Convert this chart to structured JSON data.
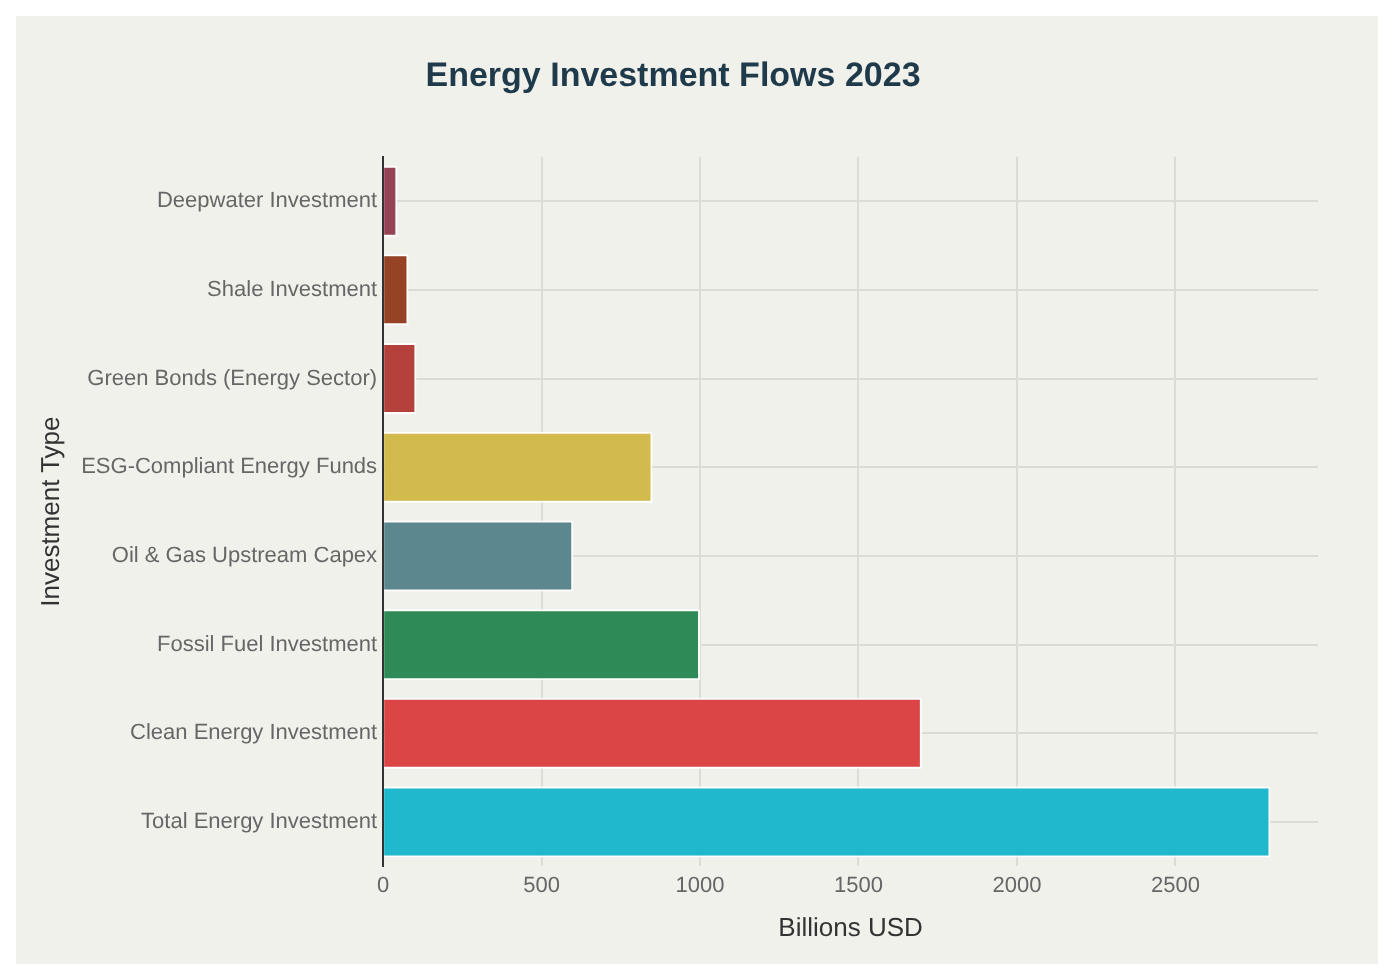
{
  "chart_data": {
    "type": "bar",
    "orientation": "horizontal",
    "title": "Energy Investment Flows 2023",
    "xlabel": "Billions USD",
    "ylabel": "Investment Type",
    "categories": [
      "Deepwater Investment",
      "Shale Investment",
      "Green Bonds (Energy Sector)",
      "ESG-Compliant Energy Funds",
      "Oil & Gas Upstream Capex",
      "Fossil Fuel Investment",
      "Clean Energy Investment",
      "Total Energy Investment"
    ],
    "values": [
      45,
      80,
      105,
      850,
      600,
      1000,
      1700,
      2800
    ],
    "colors": [
      "#944454",
      "#964325",
      "#b4413c",
      "#d2ba4c",
      "#5d878f",
      "#2e8b57",
      "#db4545",
      "#1fb8cd"
    ],
    "xlim": [
      0,
      2950
    ],
    "xticks": [
      0,
      500,
      1000,
      1500,
      2000,
      2500
    ],
    "grid": true
  }
}
